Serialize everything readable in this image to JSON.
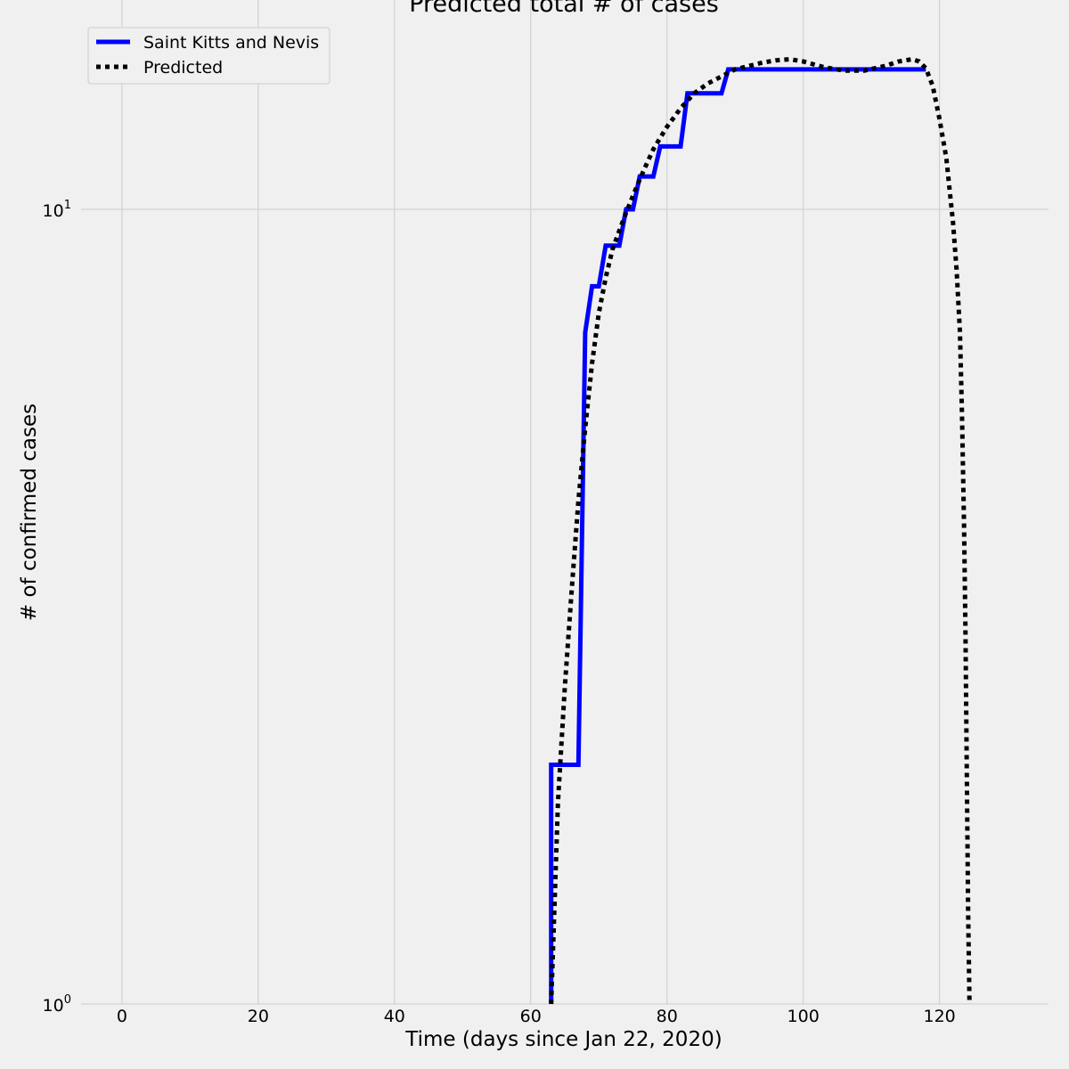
{
  "chart_data": {
    "type": "line",
    "title": "Predicted total # of cases",
    "xlabel": "Time (days since Jan 22, 2020)",
    "ylabel": "# of confirmed cases",
    "xlim": [
      -6,
      136
    ],
    "ylim": [
      1,
      17
    ],
    "yscale": "log",
    "grid": true,
    "legend_position": "top-left",
    "x_ticks": [
      0,
      20,
      40,
      60,
      80,
      100,
      120
    ],
    "x_tick_labels": [
      "0",
      "20",
      "40",
      "60",
      "80",
      "100",
      "120"
    ],
    "y_ticks": [
      {
        "value": 1,
        "base": "10",
        "exp": "0"
      },
      {
        "value": 10,
        "base": "10",
        "exp": "1"
      }
    ],
    "series": [
      {
        "name": "Saint Kitts and Nevis",
        "color": "#0000ff",
        "style": "solid",
        "step": true,
        "x": [
          63,
          67,
          68,
          69,
          70,
          71,
          73,
          74,
          75,
          76,
          78,
          79,
          82,
          83,
          88,
          89,
          118
        ],
        "y": [
          2,
          2,
          7,
          8,
          8,
          9,
          9,
          10,
          10,
          11,
          11,
          12,
          12,
          14,
          14,
          15,
          15
        ]
      },
      {
        "name": "Predicted",
        "color": "#000000",
        "style": "dotted",
        "step": false,
        "x": [
          63,
          64,
          65,
          66,
          67,
          68,
          69,
          70,
          71,
          72,
          73,
          74,
          75,
          76,
          77,
          78,
          79,
          80,
          82,
          84,
          86,
          88,
          90,
          92,
          94,
          96,
          98,
          100,
          103,
          106,
          109,
          112,
          114,
          116,
          117,
          118,
          119,
          120,
          121,
          122,
          122.5,
          123,
          123.3,
          123.6,
          123.8,
          124,
          124.2,
          124.4
        ],
        "y": [
          1.0,
          1.8,
          2.5,
          3.3,
          4.3,
          5.3,
          6.4,
          7.4,
          8.2,
          8.9,
          9.4,
          9.9,
          10.4,
          10.9,
          11.4,
          11.9,
          12.3,
          12.7,
          13.4,
          14.0,
          14.4,
          14.7,
          15.0,
          15.15,
          15.3,
          15.4,
          15.45,
          15.35,
          15.1,
          14.95,
          14.95,
          15.15,
          15.35,
          15.45,
          15.35,
          15.05,
          14.3,
          13.0,
          11.6,
          9.6,
          8.4,
          7.0,
          5.5,
          4.0,
          3.0,
          2.0,
          1.3,
          1.0
        ]
      }
    ]
  }
}
